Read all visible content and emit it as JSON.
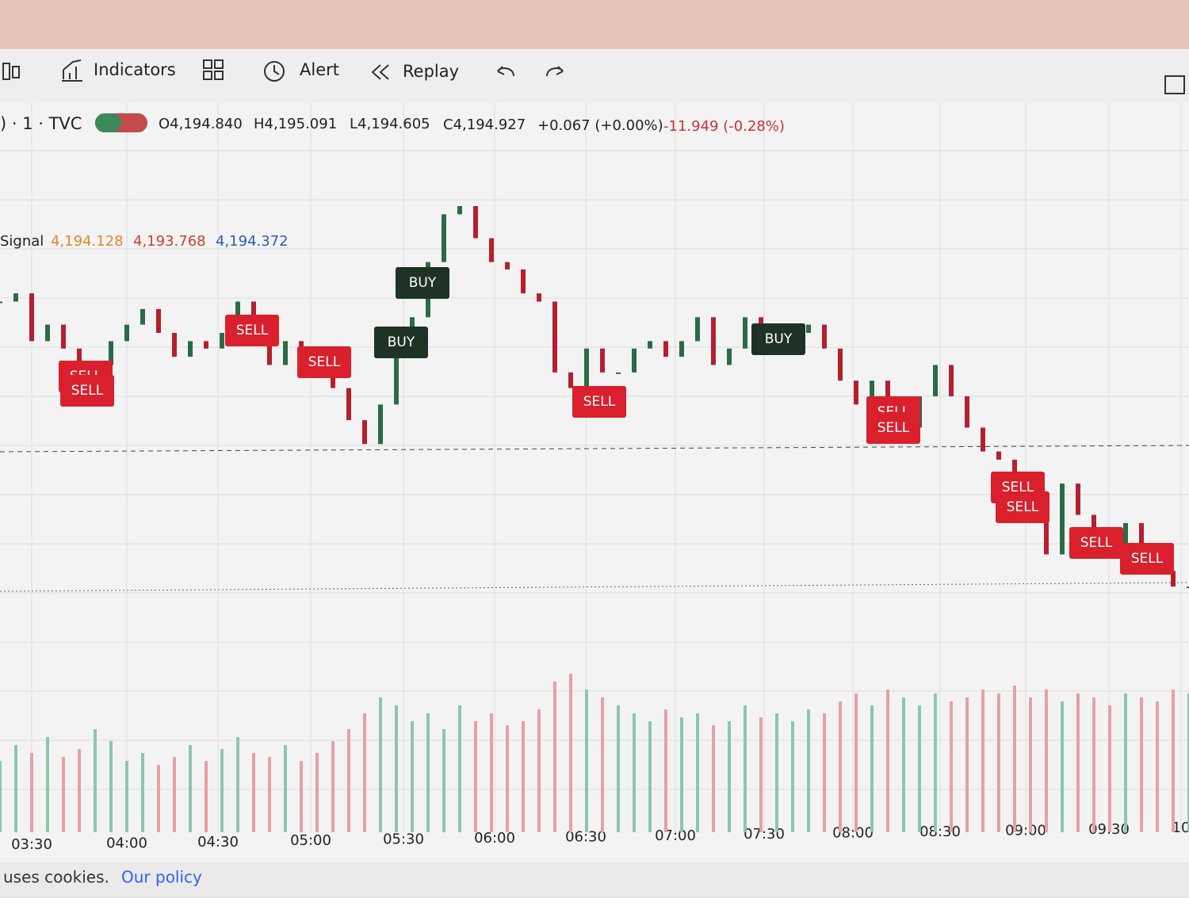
{
  "toolbar": {
    "items": [
      "Indicators",
      "Alert",
      "Replay"
    ]
  },
  "symbol": {
    "label": ") · 1 · TVC",
    "open": "O4,194.840",
    "high": "H4,195.091",
    "low": "L4,194.605",
    "close": "C4,194.927",
    "change": "+0.067 (+0.00%)",
    "session_change": "-11.949 (-0.28%)"
  },
  "indicator": {
    "name": "Signal",
    "values": [
      "4,194.128",
      "4,193.768",
      "4,194.372"
    ]
  },
  "price": {
    "type": "candlestick",
    "closes": [
      4195.65,
      4195.75,
      4195.17,
      4195.37,
      4195.08,
      4194.79,
      4194.88,
      4195.17,
      4195.37,
      4195.56,
      4195.27,
      4194.98,
      4195.17,
      4195.08,
      4195.27,
      4195.65,
      4195.37,
      4194.88,
      4195.17,
      4195.08,
      4194.79,
      4194.6,
      4194.21,
      4193.92,
      4194.4,
      4194.98,
      4195.46,
      4196.13,
      4196.71,
      4196.81,
      4196.42,
      4196.13,
      4196.04,
      4195.75,
      4195.65,
      4194.79,
      4194.6,
      4195.08,
      4194.79,
      4194.79,
      4195.08,
      4195.17,
      4194.98,
      4195.17,
      4195.46,
      4194.88,
      4195.08,
      4195.46,
      4195.17,
      4195.27,
      4195.27,
      4195.37,
      4195.08,
      4194.69,
      4194.4,
      4194.69,
      4194.12,
      4194.12,
      4194.5,
      4194.88,
      4194.5,
      4194.12,
      4193.83,
      4193.73,
      4193.44,
      4193.15,
      4192.58,
      4193.44,
      4193.06,
      4192.77,
      4192.67,
      4192.96,
      4192.58,
      4192.38,
      4192.19,
      4192.19
    ],
    "volumes": [
      90,
      110,
      100,
      120,
      95,
      105,
      130,
      115,
      90,
      100,
      85,
      95,
      110,
      90,
      105,
      120,
      100,
      95,
      110,
      90,
      100,
      115,
      130,
      150,
      170,
      160,
      140,
      150,
      130,
      160,
      140,
      150,
      135,
      140,
      155,
      190,
      200,
      180,
      170,
      160,
      150,
      140,
      155,
      145,
      150,
      135,
      140,
      160,
      145,
      150,
      140,
      155,
      150,
      165,
      175,
      160,
      180,
      170,
      160,
      175,
      165,
      170,
      180,
      175,
      185,
      170,
      180,
      165,
      175,
      170,
      160,
      175,
      170,
      165,
      180,
      175
    ]
  },
  "signals": [
    "SELL",
    "SELL",
    "SELL",
    "SELL",
    "BUY",
    "BUY",
    "SELL",
    "BUY",
    "SELL",
    "SELL",
    "SELL",
    "SELL",
    "SELL",
    "SELL"
  ],
  "time_axis": [
    "03:30",
    "04:00",
    "04:30",
    "05:00",
    "05:30",
    "06:00",
    "06:30",
    "07:00",
    "07:30",
    "08:00",
    "08:30",
    "09:00",
    "09:30",
    "10"
  ],
  "footer": {
    "text": "uses cookies.",
    "link": "Our policy"
  }
}
